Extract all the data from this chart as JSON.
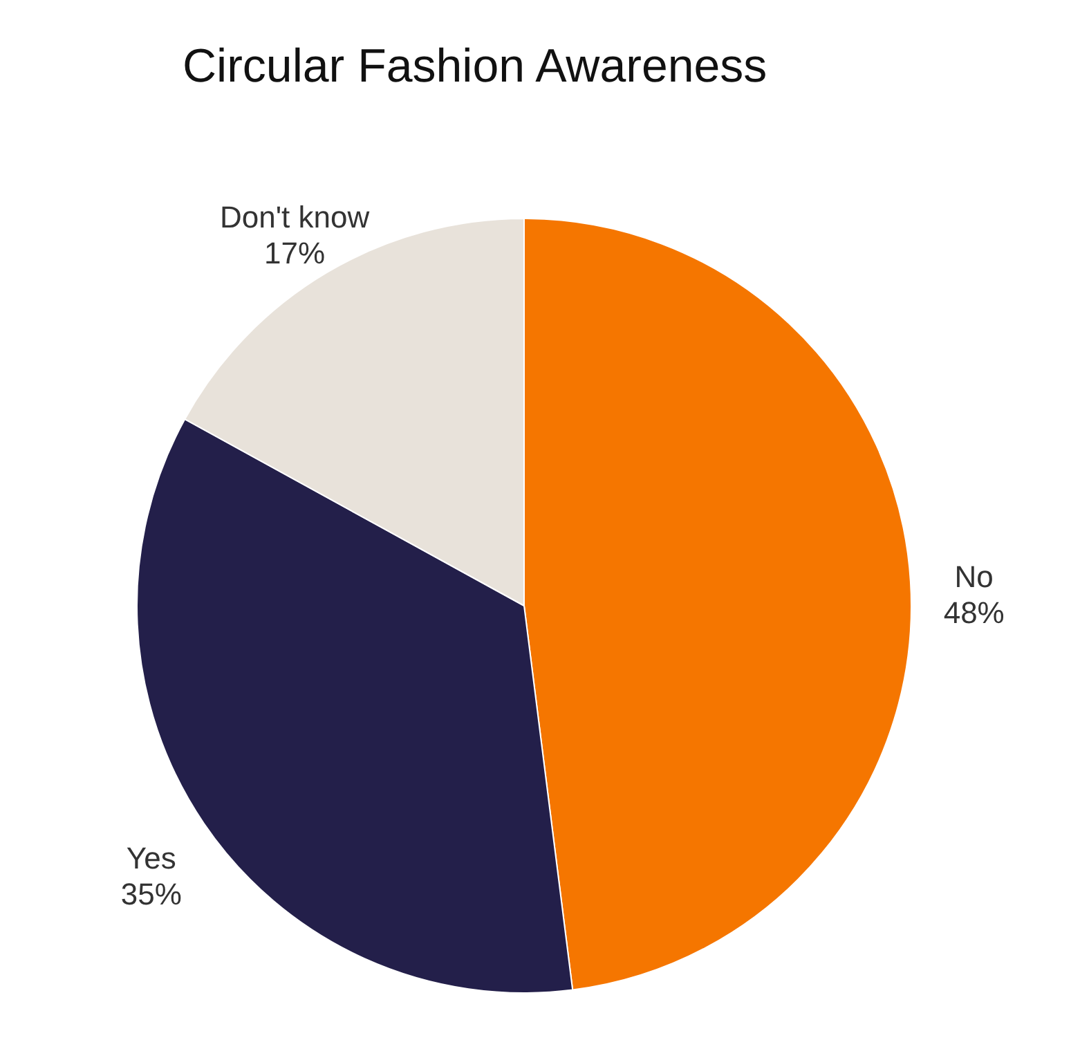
{
  "chart_data": {
    "type": "pie",
    "title": "Circular Fashion Awareness",
    "categories": [
      "No",
      "Yes",
      "Don't know"
    ],
    "values": [
      48,
      35,
      17
    ],
    "value_labels": [
      "48%",
      "35%",
      "17%"
    ],
    "colors": [
      "#f57600",
      "#231f4a",
      "#e8e2da"
    ],
    "legend": false
  }
}
